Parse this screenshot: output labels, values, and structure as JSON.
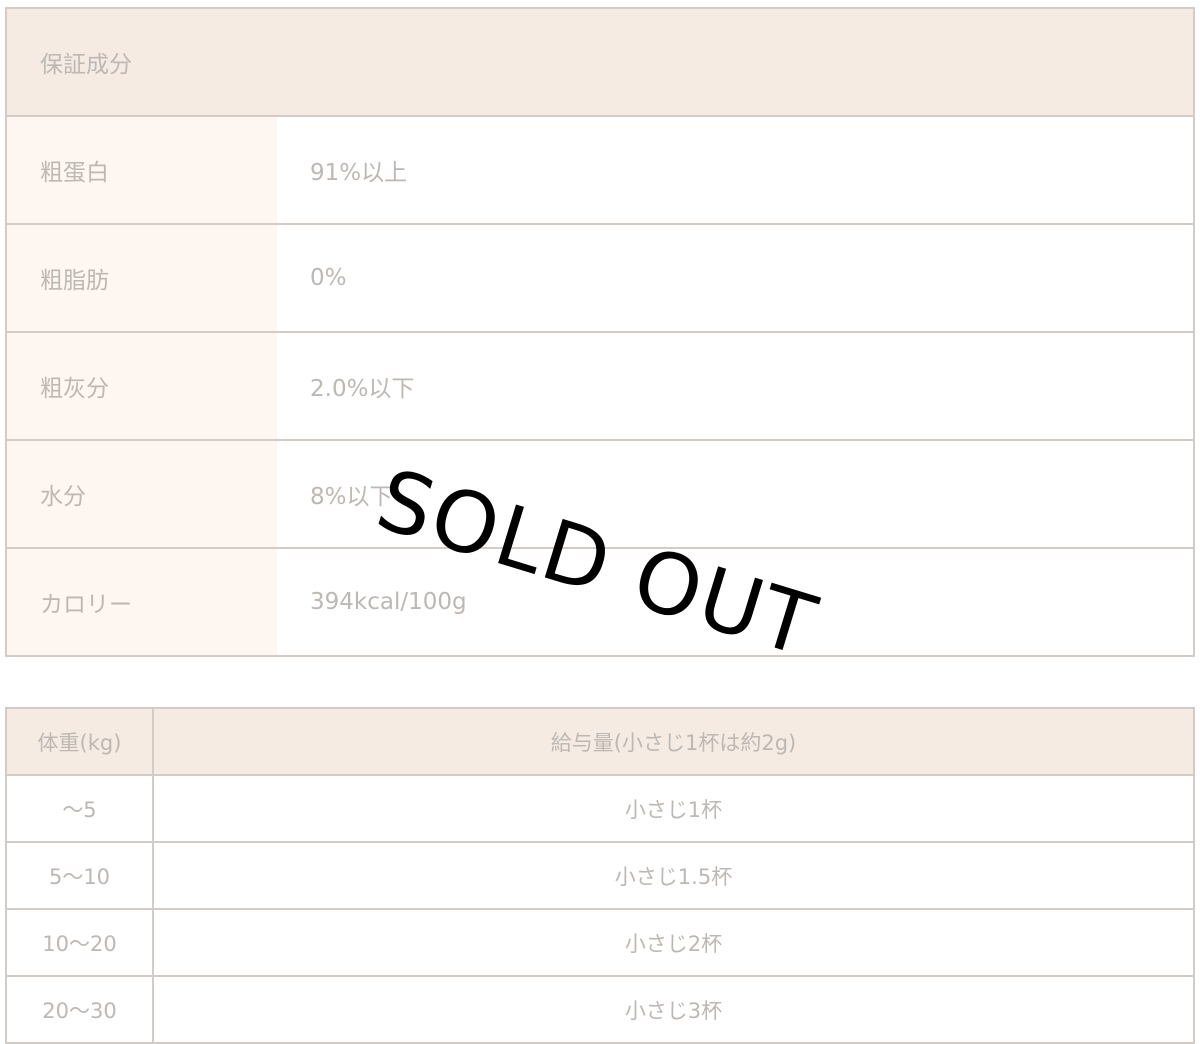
{
  "nutrition": {
    "title": "保証成分",
    "rows": [
      {
        "label": "粗蛋白",
        "value": "91%以上"
      },
      {
        "label": "粗脂肪",
        "value": "0%"
      },
      {
        "label": "粗灰分",
        "value": "2.0%以下"
      },
      {
        "label": "水分",
        "value": "8%以下"
      },
      {
        "label": "カロリー",
        "value": "394kcal/100g"
      }
    ]
  },
  "feeding": {
    "headers": [
      "体重(kg)",
      "給与量(小さじ1杯は約2g)"
    ],
    "rows": [
      [
        "～5",
        "小さじ1杯"
      ],
      [
        "5～10",
        "小さじ1.5杯"
      ],
      [
        "10～20",
        "小さじ2杯"
      ],
      [
        "20～30",
        "小さじ3杯"
      ]
    ]
  },
  "overlay": {
    "text": "SOLD OUT"
  }
}
